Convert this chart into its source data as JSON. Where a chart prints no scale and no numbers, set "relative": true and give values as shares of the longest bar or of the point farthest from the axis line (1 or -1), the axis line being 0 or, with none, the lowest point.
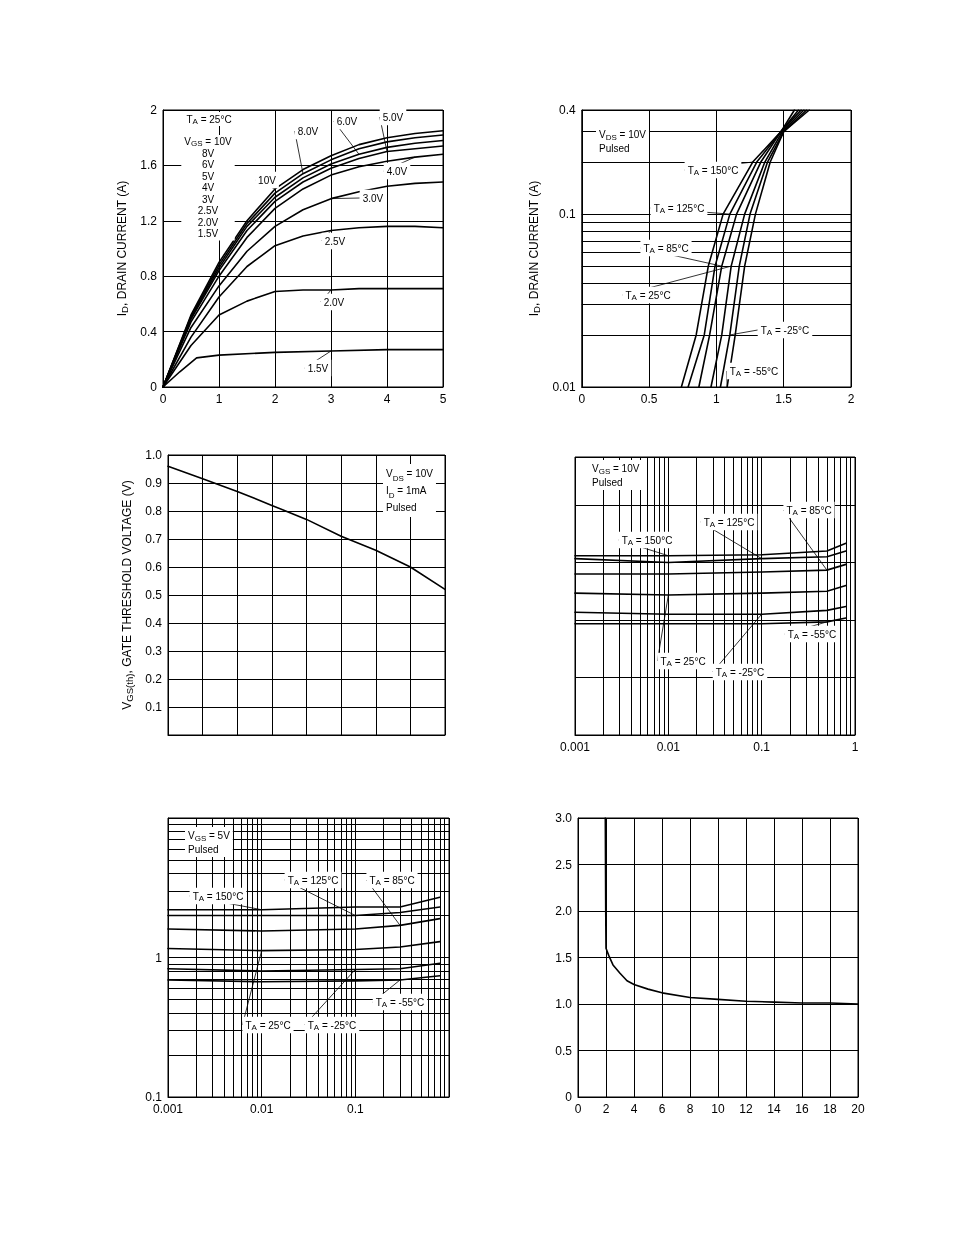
{
  "chart_data": [
    {
      "type": "line",
      "ylabel": "I$_{D}$, DRAIN CURRENT (A)",
      "x": [
        0,
        0.5,
        1,
        1.5,
        2,
        2.5,
        3,
        3.5,
        4,
        4.5,
        5
      ],
      "xlim": [
        0,
        5
      ],
      "xticks": [
        0,
        1,
        2,
        3,
        4,
        5
      ],
      "ylim": [
        0,
        2
      ],
      "yticks": [
        0,
        0.4,
        0.8,
        1.2,
        1.6,
        2
      ],
      "grid": true,
      "marker": "none",
      "annotations": [
        "T$_{A}$ = 25°C",
        "V$_{GS}$ = 10V\n8V\n6V\n5V\n4V\n3V\n2.5V\n2.0V\n1.5V"
      ],
      "series": [
        {
          "name": "10V",
          "color": "#000000",
          "values": [
            0,
            0.52,
            0.9,
            1.2,
            1.43,
            1.57,
            1.67,
            1.75,
            1.8,
            1.83,
            1.85
          ]
        },
        {
          "name": "8.0V",
          "color": "#000000",
          "values": [
            0,
            0.51,
            0.88,
            1.18,
            1.4,
            1.54,
            1.64,
            1.72,
            1.77,
            1.8,
            1.82
          ]
        },
        {
          "name": "6.0V",
          "color": "#000000",
          "values": [
            0,
            0.5,
            0.86,
            1.16,
            1.37,
            1.51,
            1.61,
            1.68,
            1.73,
            1.76,
            1.78
          ]
        },
        {
          "name": "5.0V",
          "color": "#000000",
          "values": [
            0,
            0.49,
            0.84,
            1.13,
            1.34,
            1.48,
            1.58,
            1.65,
            1.7,
            1.72,
            1.74
          ]
        },
        {
          "name": "4.0V",
          "color": "#000000",
          "values": [
            0,
            0.47,
            0.8,
            1.08,
            1.29,
            1.43,
            1.53,
            1.59,
            1.63,
            1.66,
            1.68
          ]
        },
        {
          "name": "3.0V",
          "color": "#000000",
          "values": [
            0,
            0.43,
            0.73,
            0.98,
            1.16,
            1.28,
            1.36,
            1.41,
            1.45,
            1.47,
            1.48
          ]
        },
        {
          "name": "2.5V",
          "color": "#000000",
          "values": [
            0,
            0.36,
            0.65,
            0.87,
            1.02,
            1.09,
            1.13,
            1.15,
            1.16,
            1.16,
            1.15
          ]
        },
        {
          "name": "2.0V",
          "color": "#000000",
          "values": [
            0,
            0.3,
            0.52,
            0.62,
            0.69,
            0.7,
            0.7,
            0.71,
            0.71,
            0.71,
            0.71
          ]
        },
        {
          "name": "1.5V",
          "color": "#000000",
          "x": [
            0,
            0.3,
            0.6,
            1,
            2,
            3,
            4,
            5
          ],
          "values": [
            0,
            0.11,
            0.21,
            0.23,
            0.25,
            0.26,
            0.27,
            0.27
          ]
        }
      ]
    },
    {
      "type": "line",
      "ylabel": "I$_{D}$, DRAIN CURRENT (A)",
      "log": "y",
      "xlim": [
        0,
        2
      ],
      "xticks": [
        0,
        0.5,
        1,
        1.5,
        2
      ],
      "ylim": [
        0.01,
        0.4
      ],
      "yticks": [
        0.01,
        {
          "value": 0.02,
          "label": null
        },
        {
          "value": 0.03,
          "label": null
        },
        {
          "value": 0.04,
          "label": null
        },
        {
          "value": 0.05,
          "label": null
        },
        {
          "value": 0.06,
          "label": null
        },
        {
          "value": 0.07,
          "label": null
        },
        {
          "value": 0.08,
          "label": null
        },
        {
          "value": 0.09,
          "label": null
        },
        0.1,
        {
          "value": 0.2,
          "label": null
        },
        {
          "value": 0.3,
          "label": null
        },
        0.4
      ],
      "grid": true,
      "marker": "none",
      "annotations": [
        "V$_{DS}$ = 10V\nPulsed"
      ],
      "series": [
        {
          "name": "T$_{A}$ = 150°C",
          "color": "#000000",
          "x": [
            0.74,
            0.85,
            0.94,
            1.05,
            1.27,
            1.48,
            1.58
          ],
          "values": [
            0.01,
            0.02,
            0.05,
            0.1,
            0.2,
            0.3,
            0.4
          ]
        },
        {
          "name": "T$_{A}$ = 125°C",
          "color": "#000000",
          "x": [
            0.79,
            0.91,
            0.99,
            1.1,
            1.3,
            1.48,
            1.61
          ],
          "values": [
            0.01,
            0.02,
            0.05,
            0.1,
            0.2,
            0.3,
            0.4
          ]
        },
        {
          "name": "T$_{A}$ = 85°C",
          "color": "#000000",
          "x": [
            0.87,
            0.95,
            1.04,
            1.15,
            1.33,
            1.48,
            1.63
          ],
          "values": [
            0.01,
            0.02,
            0.05,
            0.1,
            0.2,
            0.3,
            0.4
          ]
        },
        {
          "name": "T$_{A}$ = 25°C",
          "color": "#000000",
          "x": [
            0.96,
            1.04,
            1.11,
            1.21,
            1.36,
            1.49,
            1.65
          ],
          "values": [
            0.01,
            0.02,
            0.05,
            0.1,
            0.2,
            0.3,
            0.4
          ]
        },
        {
          "name": "T$_{A}$ = -25°C",
          "color": "#000000",
          "x": [
            1.03,
            1.1,
            1.17,
            1.25,
            1.38,
            1.5,
            1.67
          ],
          "values": [
            0.01,
            0.02,
            0.05,
            0.1,
            0.2,
            0.3,
            0.4
          ]
        },
        {
          "name": "T$_{A}$ = -55°C",
          "color": "#000000",
          "x": [
            1.08,
            1.14,
            1.21,
            1.29,
            1.4,
            1.5,
            1.69
          ],
          "values": [
            0.01,
            0.02,
            0.05,
            0.1,
            0.2,
            0.3,
            0.4
          ]
        }
      ]
    },
    {
      "type": "line",
      "ylabel": "V$_{GS(th)}$, GATE THRESHOLD VOLTAGE (V)",
      "categories": [
        null,
        null,
        null,
        null,
        null,
        null,
        null,
        null,
        null
      ],
      "ylim": [
        0,
        1
      ],
      "yticks": [
        0.1,
        0.2,
        0.3,
        0.4,
        0.5,
        0.6,
        0.7,
        0.8,
        0.9,
        {
          "value": 1,
          "label": "1.0"
        }
      ],
      "grid": true,
      "marker": "none",
      "tick_labels": "y",
      "annotations": [
        "V$_{DS}$ = 10V\nI$_{D}$ = 1mA\nPulsed"
      ],
      "series": [
        {
          "color": "#000000",
          "values": [
            0.96,
            0.915,
            0.87,
            0.82,
            0.77,
            0.71,
            0.66,
            0.6,
            0.52
          ]
        }
      ]
    },
    {
      "type": "line",
      "relative": true,
      "log": "x",
      "x": [
        0.001,
        0.01,
        0.1,
        0.5,
        0.8
      ],
      "xlim": [
        0.001,
        1
      ],
      "xticks": [
        0.001,
        {
          "value": 0.002,
          "label": null
        },
        {
          "value": 0.003,
          "label": null
        },
        {
          "value": 0.004,
          "label": null
        },
        {
          "value": 0.005,
          "label": null
        },
        {
          "value": 0.006,
          "label": null
        },
        {
          "value": 0.007,
          "label": null
        },
        {
          "value": 0.008,
          "label": null
        },
        {
          "value": 0.009,
          "label": null
        },
        0.01,
        {
          "value": 0.02,
          "label": null
        },
        {
          "value": 0.03,
          "label": null
        },
        {
          "value": 0.04,
          "label": null
        },
        {
          "value": 0.05,
          "label": null
        },
        {
          "value": 0.06,
          "label": null
        },
        {
          "value": 0.07,
          "label": null
        },
        {
          "value": 0.08,
          "label": null
        },
        {
          "value": 0.09,
          "label": null
        },
        0.1,
        {
          "value": 0.2,
          "label": null
        },
        {
          "value": 0.3,
          "label": null
        },
        {
          "value": 0.4,
          "label": null
        },
        {
          "value": 0.5,
          "label": null
        },
        {
          "value": 0.6,
          "label": null
        },
        {
          "value": 0.7,
          "label": null
        },
        {
          "value": 0.8,
          "label": null
        },
        {
          "value": 0.9,
          "label": null
        },
        1
      ],
      "grid": true,
      "marker": "none",
      "tick_labels": "x",
      "annotations": [
        "V$_{GS}$ = 10V\nPulsed"
      ],
      "series": [
        {
          "name": "T$_{A}$ = 150°C",
          "color": "#000000",
          "values": [
            0.935,
            0.935,
            0.94,
            0.96,
            1
          ]
        },
        {
          "name": "T$_{A}$ = 125°C",
          "color": "#000000",
          "values": [
            0.92,
            0.9,
            0.92,
            0.93,
            0.96
          ]
        },
        {
          "name": "T$_{A}$ = 85°C",
          "color": "#000000",
          "values": [
            0.84,
            0.84,
            0.85,
            0.86,
            0.89
          ]
        },
        {
          "name": "T$_{A}$ = 25°C",
          "color": "#000000",
          "values": [
            0.74,
            0.73,
            0.74,
            0.75,
            0.78
          ]
        },
        {
          "name": "T$_{A}$ = -25°C",
          "color": "#000000",
          "values": [
            0.64,
            0.63,
            0.63,
            0.65,
            0.67
          ]
        },
        {
          "name": "T$_{A}$ = -55°C",
          "color": "#000000",
          "values": [
            0.58,
            0.58,
            0.58,
            0.59,
            0.61
          ]
        }
      ]
    },
    {
      "type": "line",
      "log": "xy",
      "x": [
        0.001,
        0.01,
        0.1,
        0.3,
        0.8
      ],
      "xlim": [
        0.001,
        1
      ],
      "xticks": [
        0.001,
        {
          "value": 0.002,
          "label": null
        },
        {
          "value": 0.003,
          "label": null
        },
        {
          "value": 0.004,
          "label": null
        },
        {
          "value": 0.005,
          "label": null
        },
        {
          "value": 0.006,
          "label": null
        },
        {
          "value": 0.007,
          "label": null
        },
        {
          "value": 0.008,
          "label": null
        },
        {
          "value": 0.009,
          "label": null
        },
        0.01,
        {
          "value": 0.02,
          "label": null
        },
        {
          "value": 0.03,
          "label": null
        },
        {
          "value": 0.04,
          "label": null
        },
        {
          "value": 0.05,
          "label": null
        },
        {
          "value": 0.06,
          "label": null
        },
        {
          "value": 0.07,
          "label": null
        },
        {
          "value": 0.08,
          "label": null
        },
        {
          "value": 0.09,
          "label": null
        },
        0.1,
        {
          "value": 0.2,
          "label": null
        },
        {
          "value": 0.3,
          "label": null
        },
        {
          "value": 0.4,
          "label": null
        },
        {
          "value": 0.5,
          "label": null
        },
        {
          "value": 0.6,
          "label": null
        },
        {
          "value": 0.7,
          "label": null
        },
        {
          "value": 0.8,
          "label": null
        },
        {
          "value": 0.9,
          "label": null
        },
        {
          "value": 1,
          "label": null
        }
      ],
      "ylim": [
        0.1,
        10
      ],
      "yticks": [
        0.1,
        {
          "value": 0.2,
          "label": null
        },
        {
          "value": 0.3,
          "label": null
        },
        {
          "value": 0.4,
          "label": null
        },
        {
          "value": 0.5,
          "label": null
        },
        {
          "value": 0.6,
          "label": null
        },
        {
          "value": 0.7,
          "label": null
        },
        {
          "value": 0.8,
          "label": null
        },
        {
          "value": 0.9,
          "label": null
        },
        1,
        {
          "value": 2,
          "label": null
        },
        {
          "value": 3,
          "label": null
        },
        {
          "value": 4,
          "label": null
        },
        {
          "value": 5,
          "label": null
        },
        {
          "value": 6,
          "label": null
        },
        {
          "value": 7,
          "label": null
        },
        {
          "value": 8,
          "label": null
        },
        {
          "value": 9,
          "label": null
        },
        {
          "value": 10,
          "label": null
        }
      ],
      "grid": true,
      "marker": "none",
      "annotations": [
        "V$_{GS}$ = 5V\nPulsed"
      ],
      "series": [
        {
          "name": "T$_{A}$ = 150°C",
          "color": "#000000",
          "values": [
            2.2,
            2.2,
            2.3,
            2.3,
            2.7
          ]
        },
        {
          "name": "T$_{A}$ = 125°C",
          "color": "#000000",
          "values": [
            2,
            2,
            2,
            2.1,
            2.3
          ]
        },
        {
          "name": "T$_{A}$ = 85°C",
          "color": "#000000",
          "values": [
            1.6,
            1.55,
            1.6,
            1.7,
            1.9
          ]
        },
        {
          "name": "T$_{A}$ = 25°C",
          "color": "#000000",
          "values": [
            1.16,
            1.12,
            1.14,
            1.19,
            1.3
          ]
        },
        {
          "name": "T$_{A}$ = -25°C",
          "color": "#000000",
          "values": [
            0.83,
            0.8,
            0.82,
            0.83,
            0.91
          ]
        },
        {
          "name": "T$_{A}$ = -55°C",
          "color": "#000000",
          "values": [
            0.69,
            0.67,
            0.68,
            0.69,
            0.74
          ]
        }
      ]
    },
    {
      "type": "line",
      "x": [
        1.95,
        1.98,
        2,
        2.2,
        2.5,
        3,
        3.5,
        4,
        5,
        6,
        8,
        10,
        12,
        14,
        16,
        18,
        20
      ],
      "xlim": [
        0,
        20
      ],
      "xticks": [
        0,
        2,
        4,
        6,
        8,
        10,
        12,
        14,
        16,
        18,
        20
      ],
      "ylim": [
        0,
        3
      ],
      "yticks": [
        0,
        0.5,
        {
          "value": 1,
          "label": "1.0"
        },
        1.5,
        {
          "value": 2,
          "label": "2.0"
        },
        2.5,
        {
          "value": 3,
          "label": "3.0"
        }
      ],
      "grid": true,
      "marker": "none",
      "series": [
        {
          "color": "#000000",
          "values": [
            3,
            2,
            1.6,
            1.52,
            1.42,
            1.33,
            1.25,
            1.21,
            1.16,
            1.12,
            1.07,
            1.05,
            1.03,
            1.02,
            1.01,
            1.01,
            1
          ]
        }
      ]
    }
  ]
}
